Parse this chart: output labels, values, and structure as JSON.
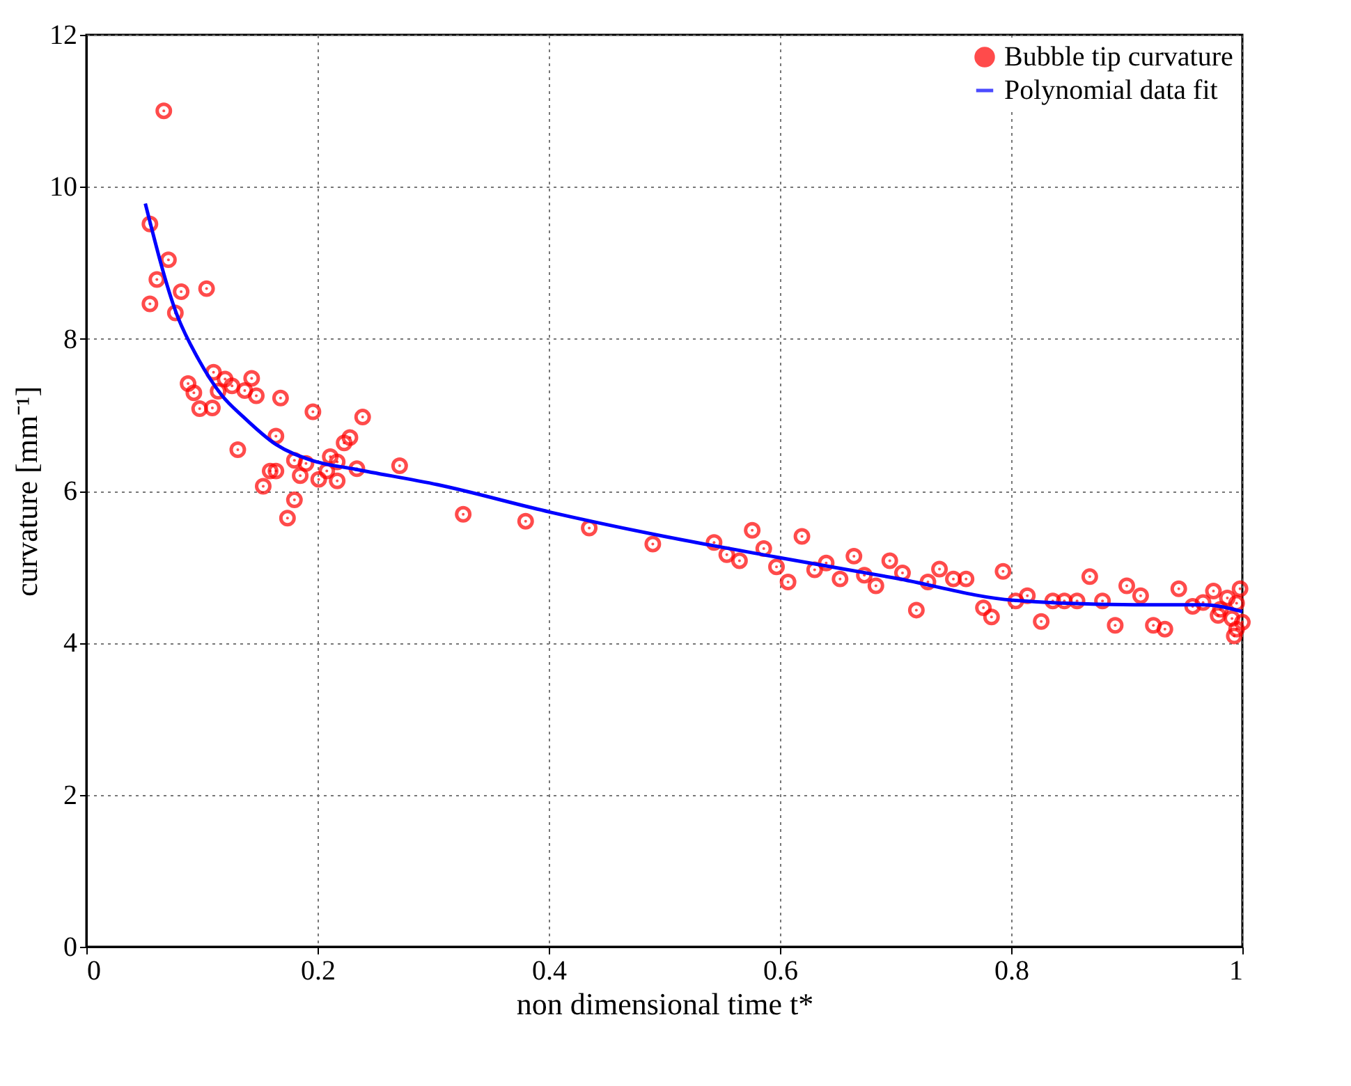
{
  "chart_data": {
    "type": "scatter",
    "xlabel": "non dimensional time t*",
    "ylabel": "curvature [mm⁻¹]",
    "xlim": [
      0,
      1
    ],
    "ylim": [
      0,
      12
    ],
    "xticks": [
      0,
      0.2,
      0.4,
      0.6,
      0.8,
      1
    ],
    "yticks": [
      0,
      2,
      4,
      6,
      8,
      10,
      12
    ],
    "grid": true,
    "legend": "top right",
    "series": [
      {
        "name": "Bubble tip curvature",
        "marker": "circle",
        "color": "#ff0000",
        "x": [
          0.067,
          0.055,
          0.061,
          0.071,
          0.055,
          0.077,
          0.082,
          0.104,
          0.088,
          0.093,
          0.098,
          0.11,
          0.12,
          0.114,
          0.109,
          0.126,
          0.137,
          0.143,
          0.147,
          0.131,
          0.168,
          0.196,
          0.239,
          0.164,
          0.153,
          0.159,
          0.164,
          0.18,
          0.185,
          0.19,
          0.174,
          0.18,
          0.201,
          0.208,
          0.211,
          0.217,
          0.217,
          0.223,
          0.228,
          0.234,
          0.271,
          0.326,
          0.38,
          0.435,
          0.49,
          0.543,
          0.554,
          0.565,
          0.576,
          0.586,
          0.597,
          0.607,
          0.619,
          0.63,
          0.64,
          0.652,
          0.664,
          0.673,
          0.683,
          0.695,
          0.706,
          0.718,
          0.728,
          0.738,
          0.75,
          0.761,
          0.776,
          0.783,
          0.793,
          0.804,
          0.814,
          0.826,
          0.836,
          0.846,
          0.857,
          0.868,
          0.879,
          0.89,
          0.9,
          0.912,
          0.923,
          0.933,
          0.945,
          0.957,
          0.966,
          0.975,
          0.987,
          0.979,
          0.991,
          0.995,
          0.998,
          0.993,
          1.0,
          0.995,
          0.981
        ],
        "values": [
          11.0,
          9.51,
          8.78,
          9.04,
          8.46,
          8.34,
          8.62,
          8.66,
          7.41,
          7.29,
          7.08,
          7.56,
          7.47,
          7.31,
          7.09,
          7.38,
          7.32,
          7.48,
          7.25,
          6.54,
          7.22,
          7.04,
          6.97,
          6.72,
          6.06,
          6.26,
          6.26,
          6.4,
          6.2,
          6.36,
          5.64,
          5.88,
          6.15,
          6.26,
          6.45,
          6.38,
          6.13,
          6.63,
          6.7,
          6.29,
          6.33,
          5.69,
          5.6,
          5.51,
          5.3,
          5.32,
          5.16,
          5.08,
          5.48,
          5.24,
          5.0,
          4.8,
          5.4,
          4.96,
          5.05,
          4.84,
          5.14,
          4.89,
          4.75,
          5.08,
          4.92,
          4.43,
          4.8,
          4.97,
          4.84,
          4.84,
          4.46,
          4.34,
          4.94,
          4.55,
          4.62,
          4.28,
          4.55,
          4.55,
          4.55,
          4.87,
          4.55,
          4.23,
          4.75,
          4.62,
          4.23,
          4.18,
          4.71,
          4.48,
          4.53,
          4.68,
          4.59,
          4.36,
          4.32,
          4.52,
          4.71,
          4.09,
          4.27,
          4.18,
          4.44
        ]
      },
      {
        "name": "Polynomial data fit",
        "type": "line",
        "line_style": "solid",
        "color": "#0000ff",
        "x": [
          0.051,
          0.078,
          0.097,
          0.117,
          0.136,
          0.164,
          0.195,
          0.234,
          0.304,
          0.401,
          0.5,
          0.596,
          0.7,
          0.802,
          0.907,
          0.966,
          1.0
        ],
        "values": [
          9.78,
          8.33,
          7.73,
          7.26,
          6.97,
          6.61,
          6.4,
          6.28,
          6.08,
          5.72,
          5.4,
          5.13,
          4.85,
          4.56,
          4.5,
          4.5,
          4.41
        ]
      }
    ]
  }
}
